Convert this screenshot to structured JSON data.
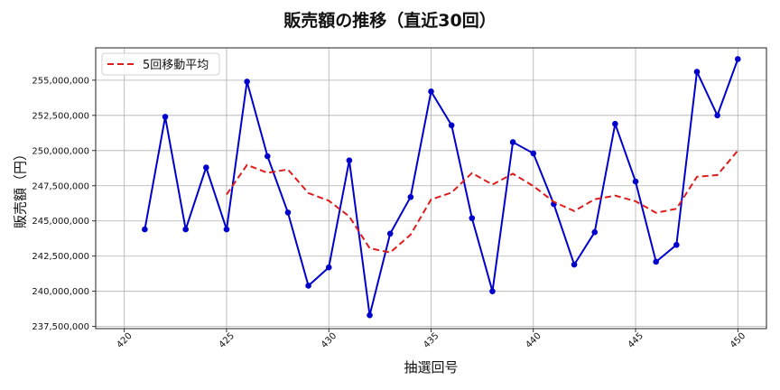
{
  "chart_data": {
    "type": "line",
    "title": "販売額の推移（直近30回）",
    "xlabel": "抽選回号",
    "ylabel": "販売額（円）",
    "xlim": [
      418.6,
      451.4
    ],
    "ylim": [
      237350000,
      257300000
    ],
    "x_ticks": [
      420,
      425,
      430,
      435,
      440,
      445,
      450
    ],
    "y_ticks": [
      237500000,
      240000000,
      242500000,
      245000000,
      247500000,
      250000000,
      252500000,
      255000000
    ],
    "y_tick_labels": [
      "237,500,000",
      "240,000,000",
      "242,500,000",
      "245,000,000",
      "247,500,000",
      "250,000,000",
      "252,500,000",
      "255,000,000"
    ],
    "grid": true,
    "legend_position": "upper left",
    "x": [
      421,
      422,
      423,
      424,
      425,
      426,
      427,
      428,
      429,
      430,
      431,
      432,
      433,
      434,
      435,
      436,
      437,
      438,
      439,
      440,
      441,
      442,
      443,
      444,
      445,
      446,
      447,
      448,
      449,
      450
    ],
    "series": [
      {
        "name": "販売額",
        "style": "solid-marker",
        "color": "#0000cc",
        "in_legend": false,
        "values": [
          244400000,
          252400000,
          244400000,
          248800000,
          244400000,
          254900000,
          249600000,
          245600000,
          240400000,
          241700000,
          249300000,
          238300000,
          244100000,
          246700000,
          254200000,
          251800000,
          245200000,
          240000000,
          250600000,
          249800000,
          246200000,
          241900000,
          244200000,
          251900000,
          247800000,
          242100000,
          243300000,
          255600000,
          252500000,
          256500000
        ]
      },
      {
        "name": "5回移動平均",
        "style": "dashed",
        "color": "#dd1c1c",
        "in_legend": true,
        "values": [
          null,
          null,
          null,
          null,
          246880000,
          248980000,
          248420000,
          248660000,
          246980000,
          246440000,
          245320000,
          243060000,
          242760000,
          244020000,
          246520000,
          247020000,
          248400000,
          247580000,
          248360000,
          247480000,
          246360000,
          245700000,
          246540000,
          246800000,
          246400000,
          245580000,
          245860000,
          248140000,
          248260000,
          250000000
        ]
      }
    ]
  }
}
